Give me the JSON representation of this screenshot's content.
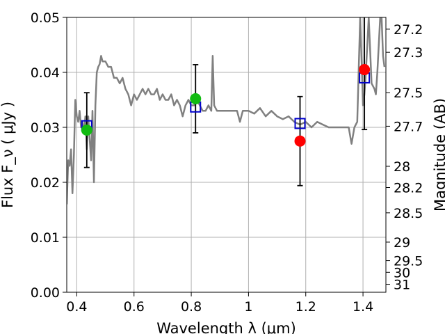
{
  "chart_data": {
    "type": "scatter",
    "xlabel": "Wavelength  λ (μm)",
    "ylabel": "Flux  F_ν  ( μJy )",
    "ylabel_right": "Magnitude (AB)",
    "xlim": [
      0.365,
      1.48
    ],
    "ylim": [
      0.0,
      0.05
    ],
    "grid": true,
    "x_ticks": [
      {
        "value": 0.4,
        "label": "0.4"
      },
      {
        "value": 0.6,
        "label": "0.6"
      },
      {
        "value": 0.8,
        "label": "0.8"
      },
      {
        "value": 1.0,
        "label": "1"
      },
      {
        "value": 1.2,
        "label": "1.2"
      },
      {
        "value": 1.4,
        "label": "1.4"
      }
    ],
    "y_ticks": [
      {
        "value": 0.0,
        "label": "0.00"
      },
      {
        "value": 0.01,
        "label": "0.01"
      },
      {
        "value": 0.02,
        "label": "0.02"
      },
      {
        "value": 0.03,
        "label": "0.03"
      },
      {
        "value": 0.04,
        "label": "0.04"
      },
      {
        "value": 0.05,
        "label": "0.05"
      }
    ],
    "right_ticks": [
      {
        "flux": 0.04786,
        "label": "27.2"
      },
      {
        "flux": 0.04365,
        "label": "27.3"
      },
      {
        "flux": 0.03631,
        "label": "27.5"
      },
      {
        "flux": 0.0302,
        "label": "27.7"
      },
      {
        "flux": 0.02291,
        "label": "28"
      },
      {
        "flux": 0.01905,
        "label": "28.2"
      },
      {
        "flux": 0.01445,
        "label": "28.5"
      },
      {
        "flux": 0.00912,
        "label": "29"
      },
      {
        "flux": 0.00575,
        "label": "29.5"
      },
      {
        "flux": 0.00363,
        "label": "30"
      },
      {
        "flux": 0.00145,
        "label": "31"
      }
    ],
    "colors": {
      "spectrum": "#808080",
      "model_marker": "#0000cc",
      "obs_green": "#11bb11",
      "obs_red": "#ff0000",
      "errorbar": "#000000",
      "grid": "#b0b0b0"
    },
    "spectrum": {
      "x": [
        0.365,
        0.37,
        0.375,
        0.38,
        0.385,
        0.39,
        0.395,
        0.4,
        0.405,
        0.41,
        0.415,
        0.42,
        0.425,
        0.43,
        0.435,
        0.44,
        0.445,
        0.45,
        0.455,
        0.46,
        0.465,
        0.47,
        0.475,
        0.48,
        0.485,
        0.49,
        0.5,
        0.51,
        0.52,
        0.53,
        0.54,
        0.55,
        0.56,
        0.57,
        0.58,
        0.59,
        0.6,
        0.61,
        0.62,
        0.63,
        0.64,
        0.65,
        0.66,
        0.67,
        0.68,
        0.69,
        0.7,
        0.71,
        0.72,
        0.73,
        0.74,
        0.75,
        0.76,
        0.77,
        0.78,
        0.79,
        0.8,
        0.81,
        0.82,
        0.83,
        0.84,
        0.85,
        0.86,
        0.87,
        0.875,
        0.88,
        0.89,
        0.9,
        0.92,
        0.94,
        0.96,
        0.97,
        0.98,
        1.0,
        1.02,
        1.04,
        1.06,
        1.08,
        1.1,
        1.12,
        1.14,
        1.16,
        1.18,
        1.2,
        1.22,
        1.24,
        1.26,
        1.28,
        1.3,
        1.32,
        1.34,
        1.35,
        1.36,
        1.37,
        1.38,
        1.39,
        1.4,
        1.405,
        1.41,
        1.42,
        1.43,
        1.44,
        1.445,
        1.45,
        1.46,
        1.465,
        1.47,
        1.475
      ],
      "y": [
        0.016,
        0.024,
        0.023,
        0.026,
        0.018,
        0.025,
        0.035,
        0.032,
        0.031,
        0.033,
        0.03,
        0.031,
        0.029,
        0.032,
        0.026,
        0.032,
        0.028,
        0.024,
        0.033,
        0.02,
        0.034,
        0.04,
        0.041,
        0.0415,
        0.043,
        0.042,
        0.042,
        0.041,
        0.041,
        0.039,
        0.039,
        0.038,
        0.039,
        0.037,
        0.036,
        0.034,
        0.036,
        0.035,
        0.036,
        0.037,
        0.036,
        0.037,
        0.036,
        0.036,
        0.037,
        0.035,
        0.036,
        0.035,
        0.035,
        0.036,
        0.034,
        0.035,
        0.034,
        0.032,
        0.034,
        0.035,
        0.034,
        0.034,
        0.035,
        0.034,
        0.033,
        0.033,
        0.034,
        0.033,
        0.043,
        0.034,
        0.033,
        0.033,
        0.033,
        0.033,
        0.033,
        0.031,
        0.033,
        0.033,
        0.0325,
        0.0335,
        0.032,
        0.033,
        0.032,
        0.0315,
        0.032,
        0.031,
        0.0305,
        0.031,
        0.03,
        0.031,
        0.0305,
        0.03,
        0.03,
        0.03,
        0.03,
        0.03,
        0.027,
        0.03,
        0.031,
        0.05,
        0.034,
        0.036,
        0.04,
        0.05,
        0.038,
        0.037,
        0.036,
        0.04,
        0.05,
        0.05,
        0.043,
        0.041
      ]
    },
    "model_points": [
      {
        "x": 0.435,
        "y": 0.0303
      },
      {
        "x": 0.815,
        "y": 0.0337
      },
      {
        "x": 1.18,
        "y": 0.0307
      },
      {
        "x": 1.405,
        "y": 0.039
      }
    ],
    "observed_points": [
      {
        "x": 0.435,
        "y": 0.0295,
        "err_low": 0.0068,
        "err_high": 0.0068,
        "color": "green"
      },
      {
        "x": 0.815,
        "y": 0.0352,
        "err_low": 0.0062,
        "err_high": 0.0062,
        "color": "green"
      },
      {
        "x": 1.18,
        "y": 0.0275,
        "err_low": 0.0081,
        "err_high": 0.0081,
        "color": "red"
      },
      {
        "x": 1.405,
        "y": 0.0405,
        "err_low": 0.0109,
        "err_high": 0.015,
        "color": "red"
      }
    ]
  }
}
